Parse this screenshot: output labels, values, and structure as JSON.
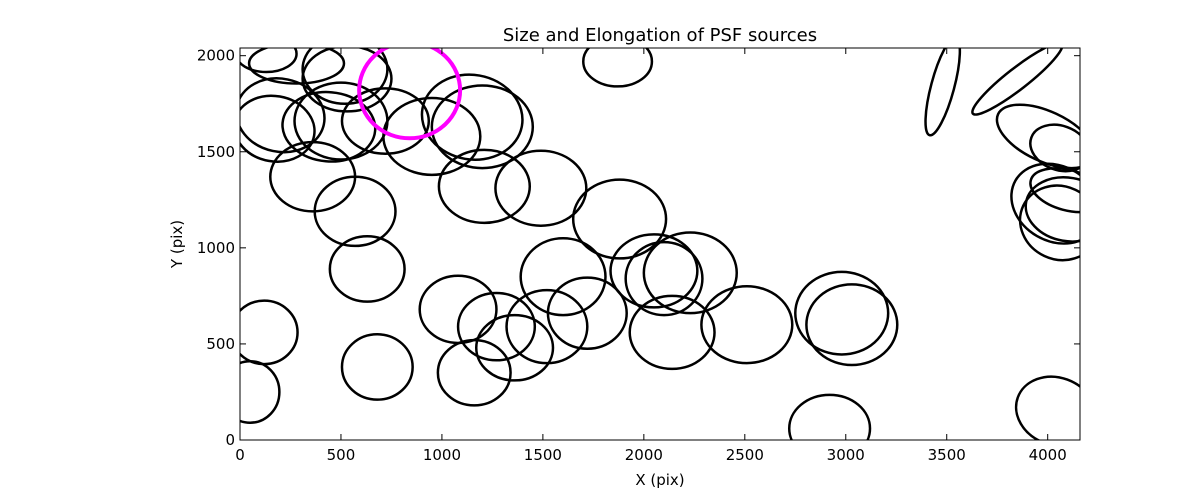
{
  "chart_data": {
    "type": "scatter",
    "title": "Size and Elongation of PSF sources",
    "xlabel": "X (pix)",
    "ylabel": "Y (pix)",
    "xlim": [
      0,
      4160
    ],
    "ylim": [
      0,
      2040
    ],
    "xticks": [
      0,
      500,
      1000,
      1500,
      2000,
      2500,
      3000,
      3500,
      4000
    ],
    "yticks": [
      0,
      500,
      1000,
      1500,
      2000
    ],
    "grid": false,
    "legend": "none",
    "ellipse_color": "#000000",
    "highlight_color": "#ff00ff",
    "series": [
      {
        "marker": "ellipse",
        "columns": [
          "x",
          "y",
          "width",
          "height",
          "angle_deg"
        ],
        "points": [
          [
            130,
            2010,
            300,
            190,
            0
          ],
          [
            280,
            1960,
            470,
            210,
            0
          ],
          [
            520,
            1930,
            420,
            360,
            0
          ],
          [
            530,
            1880,
            440,
            340,
            0
          ],
          [
            200,
            1690,
            440,
            380,
            -12
          ],
          [
            170,
            1620,
            400,
            340,
            -10
          ],
          [
            500,
            1660,
            460,
            400,
            0
          ],
          [
            440,
            1630,
            460,
            360,
            -5
          ],
          [
            720,
            1660,
            430,
            340,
            0
          ],
          [
            950,
            1580,
            480,
            400,
            0
          ],
          [
            1150,
            1680,
            500,
            440,
            -10
          ],
          [
            1200,
            1630,
            500,
            430,
            0
          ],
          [
            1870,
            1970,
            340,
            260,
            0
          ],
          [
            360,
            1370,
            420,
            360,
            0
          ],
          [
            570,
            1190,
            400,
            360,
            0
          ],
          [
            630,
            890,
            370,
            340,
            0
          ],
          [
            1210,
            1320,
            450,
            380,
            0
          ],
          [
            1490,
            1310,
            450,
            390,
            0
          ],
          [
            1880,
            1150,
            460,
            410,
            0
          ],
          [
            2050,
            880,
            430,
            380,
            0
          ],
          [
            2100,
            840,
            380,
            380,
            0
          ],
          [
            2230,
            870,
            460,
            420,
            0
          ],
          [
            1600,
            850,
            420,
            400,
            0
          ],
          [
            1720,
            660,
            390,
            370,
            0
          ],
          [
            1080,
            680,
            380,
            350,
            0
          ],
          [
            1270,
            590,
            380,
            350,
            0
          ],
          [
            1360,
            480,
            380,
            340,
            0
          ],
          [
            1520,
            590,
            400,
            380,
            0
          ],
          [
            1160,
            350,
            360,
            340,
            0
          ],
          [
            680,
            380,
            350,
            340,
            0
          ],
          [
            120,
            560,
            330,
            330,
            0
          ],
          [
            50,
            250,
            290,
            320,
            0
          ],
          [
            2140,
            560,
            420,
            380,
            0
          ],
          [
            2510,
            600,
            450,
            400,
            0
          ],
          [
            2980,
            660,
            460,
            430,
            0
          ],
          [
            3030,
            600,
            450,
            420,
            0
          ],
          [
            2920,
            60,
            400,
            350,
            0
          ],
          [
            3850,
            1880,
            560,
            110,
            38
          ],
          [
            3480,
            1840,
            500,
            120,
            75
          ],
          [
            3990,
            1580,
            520,
            260,
            -25
          ],
          [
            4060,
            1520,
            300,
            230,
            -20
          ],
          [
            4100,
            1300,
            380,
            210,
            -15
          ],
          [
            4040,
            1230,
            460,
            390,
            -30
          ],
          [
            4060,
            1130,
            400,
            380,
            -25
          ],
          [
            4100,
            1200,
            420,
            330,
            -10
          ],
          [
            4040,
            150,
            400,
            350,
            -20
          ]
        ]
      }
    ],
    "highlight": {
      "marker": "circle",
      "x": 840,
      "y": 1820,
      "diameter": 500
    }
  }
}
